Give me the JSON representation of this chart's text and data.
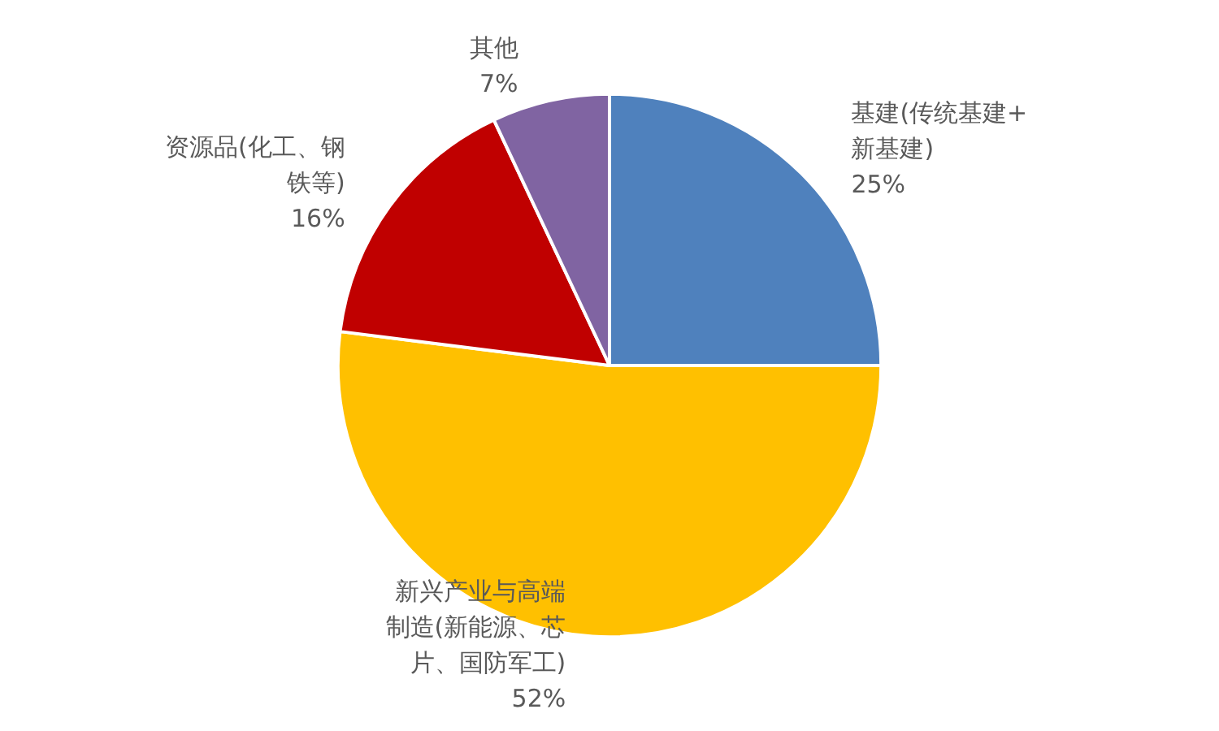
{
  "chart_data": {
    "type": "pie",
    "categories": [
      "基建(传统基建+新基建)",
      "新兴产业与高端制造(新能源、芯片、国防军工)",
      "资源品(化工、钢铁等)",
      "其他"
    ],
    "values": [
      25,
      52,
      16,
      7
    ],
    "colors": [
      "#4f81bd",
      "#ffc000",
      "#c00000",
      "#8064a2"
    ],
    "value_labels": [
      "25%",
      "52%",
      "16%",
      "7%"
    ],
    "legend": false
  }
}
